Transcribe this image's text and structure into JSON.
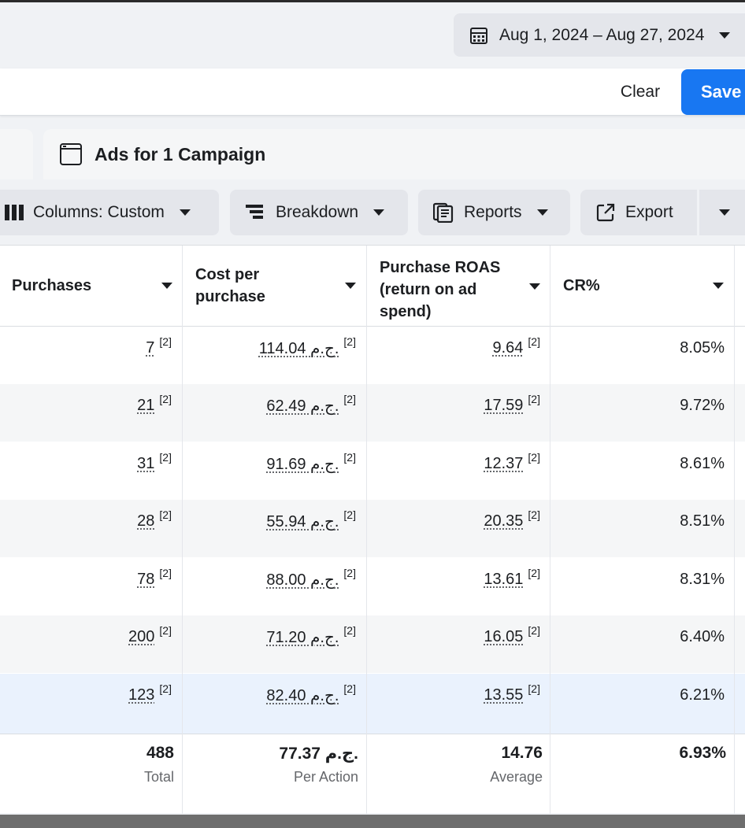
{
  "date_range": {
    "label": "Aug 1, 2024 – Aug 27, 2024"
  },
  "filter_bar": {
    "clear_label": "Clear",
    "save_label": "Save"
  },
  "tabs": {
    "active_label": "Ads for 1 Campaign"
  },
  "toolbar": {
    "columns_label": "Columns: Custom",
    "breakdown_label": "Breakdown",
    "reports_label": "Reports",
    "export_label": "Export"
  },
  "table": {
    "headers": [
      {
        "label": "Purchases"
      },
      {
        "label": "Cost per\npurchase"
      },
      {
        "label": "Purchase ROAS\n(return on ad\nspend)"
      },
      {
        "label": "CR%"
      }
    ],
    "rows": [
      {
        "purchases": "7",
        "cost": "114.04 ج.م.",
        "roas": "9.64",
        "cr": "8.05%"
      },
      {
        "purchases": "21",
        "cost": "62.49 ج.م.",
        "roas": "17.59",
        "cr": "9.72%"
      },
      {
        "purchases": "31",
        "cost": "91.69 ج.م.",
        "roas": "12.37",
        "cr": "8.61%"
      },
      {
        "purchases": "28",
        "cost": "55.94 ج.م.",
        "roas": "20.35",
        "cr": "8.51%"
      },
      {
        "purchases": "78",
        "cost": "88.00 ج.م.",
        "roas": "13.61",
        "cr": "8.31%"
      },
      {
        "purchases": "200",
        "cost": "71.20 ج.م.",
        "roas": "16.05",
        "cr": "6.40%"
      },
      {
        "purchases": "123",
        "cost": "82.40 ج.م.",
        "roas": "13.55",
        "cr": "6.21%"
      }
    ],
    "footnote": "[2]",
    "totals": {
      "purchases": "488",
      "purchases_label": "Total",
      "cost": "77.37 ج.م.",
      "cost_label": "Per Action",
      "roas": "14.76",
      "roas_label": "Average",
      "cr": "6.93%"
    }
  },
  "icons": [
    "calendar-icon",
    "caret-down-icon",
    "window-icon",
    "columns-icon",
    "breakdown-icon",
    "reports-icon",
    "export-icon"
  ],
  "colors": {
    "accent": "#1877f2",
    "selected_row": "#eaf2fd",
    "alt_row": "#f5f6f7"
  }
}
